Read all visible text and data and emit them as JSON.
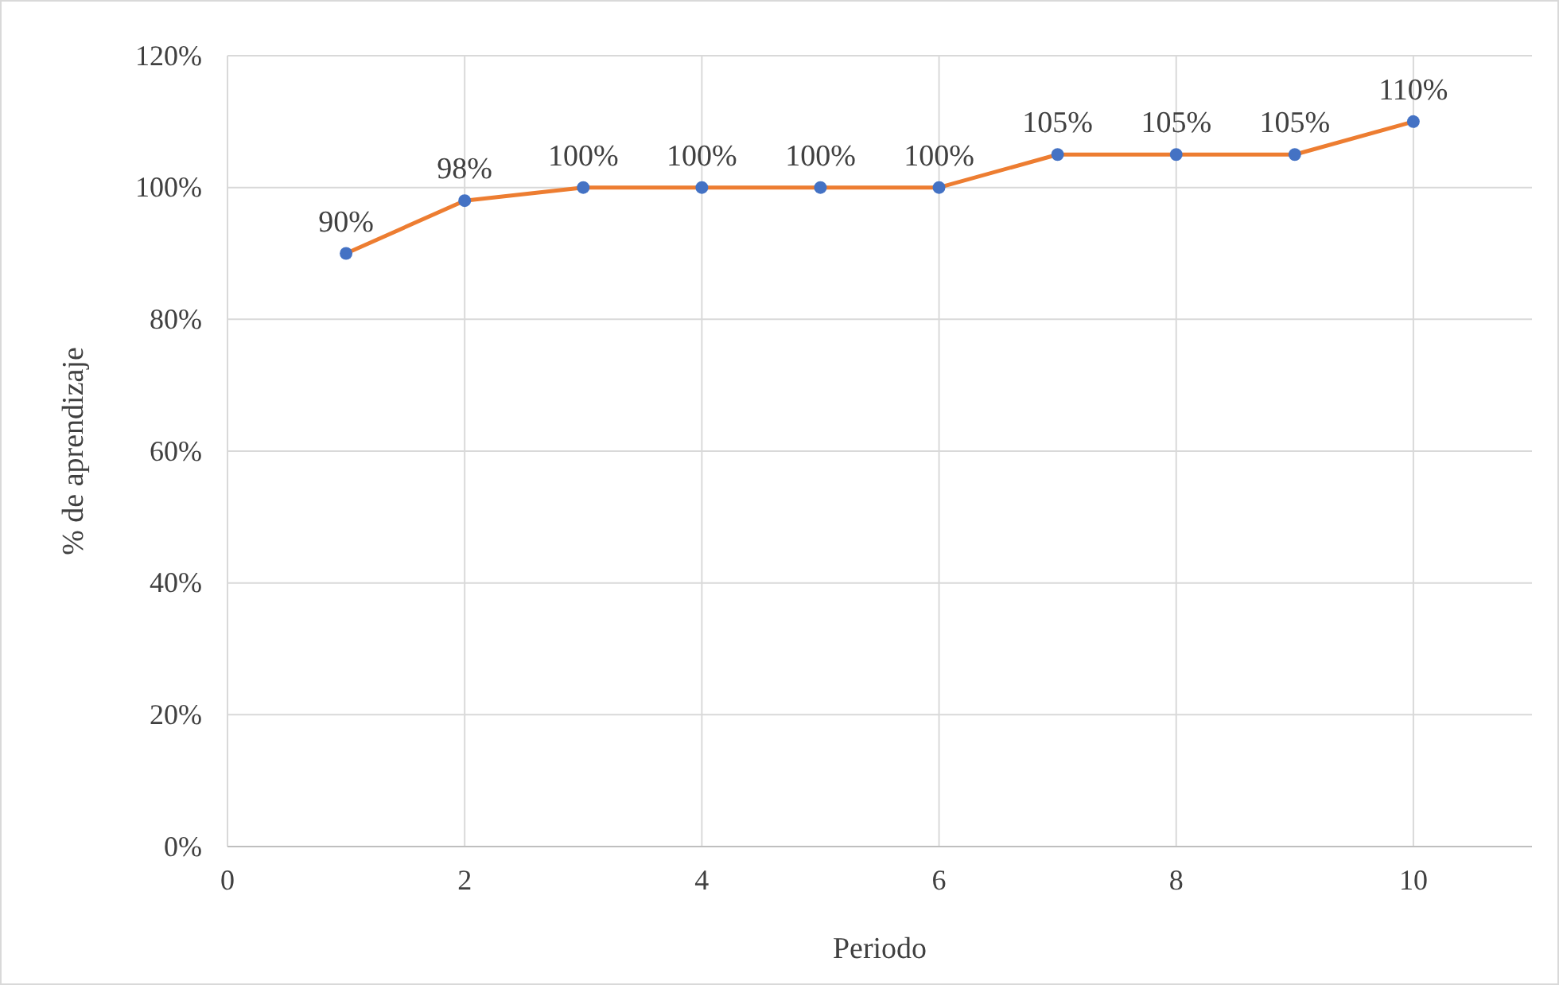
{
  "chart_data": {
    "type": "line",
    "xlabel": "Periodo",
    "ylabel": "% de aprendizaje",
    "x": [
      1,
      2,
      3,
      4,
      5,
      6,
      7,
      8,
      9,
      10
    ],
    "series": [
      {
        "color": "#ed7d31",
        "colors": [
          "#4472c4",
          "#4472c4",
          "#4472c4",
          "#4472c4",
          "#4472c4",
          "#4472c4",
          "#4472c4",
          "#4472c4",
          "#4472c4",
          "#4472c4"
        ],
        "values": [
          90,
          98,
          100,
          100,
          100,
          100,
          105,
          105,
          105,
          110
        ],
        "value_labels": [
          "90%",
          "98%",
          "100%",
          "100%",
          "100%",
          "100%",
          "105%",
          "105%",
          "105%",
          "110%"
        ]
      }
    ],
    "xlim": [
      0,
      11
    ],
    "xticks": [
      0,
      2,
      4,
      6,
      8,
      10
    ],
    "ylim": [
      0,
      120
    ],
    "yticks": [
      {
        "value": 0,
        "label": "0%"
      },
      {
        "value": 20,
        "label": "20%"
      },
      {
        "value": 40,
        "label": "40%"
      },
      {
        "value": 60,
        "label": "60%"
      },
      {
        "value": 80,
        "label": "80%"
      },
      {
        "value": 100,
        "label": "100%"
      },
      {
        "value": 120,
        "label": "120%"
      }
    ],
    "grid": true,
    "marker": "circle",
    "line_style": "solid"
  }
}
